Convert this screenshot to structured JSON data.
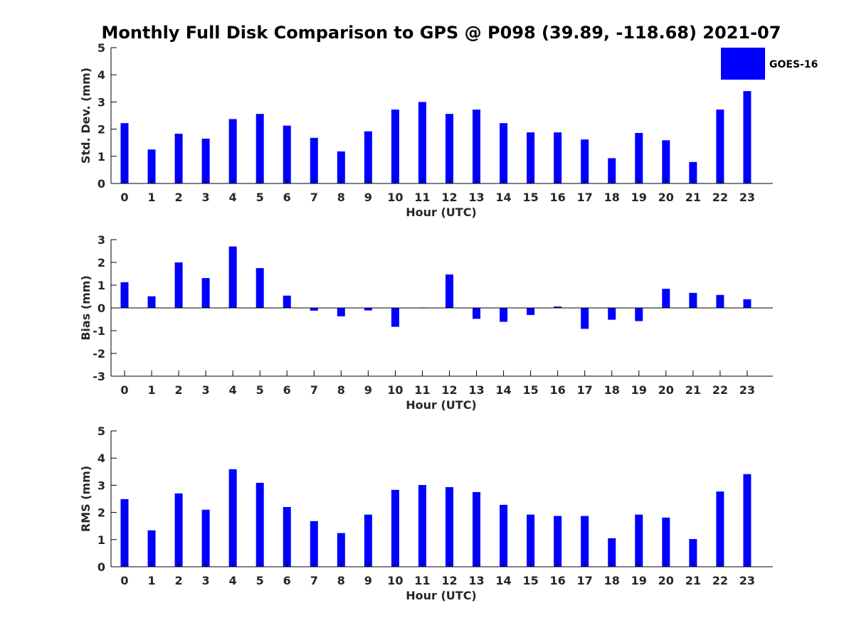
{
  "figure": {
    "title": "Monthly Full Disk Comparison to GPS @ P098 (39.89, -118.68) 2021-07",
    "legend_label": "GOES-16"
  },
  "colors": {
    "bar": "#0000ff",
    "axis": "#000000",
    "tick_text": "#262626"
  },
  "chart_data": [
    {
      "type": "bar",
      "title": "Monthly Full Disk Comparison to GPS @ P098 (39.89, -118.68) 2021-07",
      "xlabel": "Hour (UTC)",
      "ylabel": "Std. Dev. (mm)",
      "ylim": [
        0,
        5
      ],
      "yticks": [
        0,
        1,
        2,
        3,
        4,
        5
      ],
      "categories": [
        "0",
        "1",
        "2",
        "3",
        "4",
        "5",
        "6",
        "7",
        "8",
        "9",
        "10",
        "11",
        "12",
        "13",
        "14",
        "15",
        "16",
        "17",
        "18",
        "19",
        "20",
        "21",
        "22",
        "23"
      ],
      "series": [
        {
          "name": "GOES-16",
          "values": [
            2.22,
            1.25,
            1.83,
            1.65,
            2.37,
            2.56,
            2.13,
            1.68,
            1.18,
            1.92,
            2.72,
            3.0,
            2.56,
            2.72,
            2.22,
            1.88,
            1.88,
            1.62,
            0.93,
            1.86,
            1.59,
            0.79,
            2.72,
            3.4
          ]
        }
      ],
      "legend": "top-right",
      "grid": false
    },
    {
      "type": "bar",
      "xlabel": "Hour (UTC)",
      "ylabel": "Bias (mm)",
      "ylim": [
        -3,
        3
      ],
      "yticks": [
        -3,
        -2,
        -1,
        0,
        1,
        2,
        3
      ],
      "categories": [
        "0",
        "1",
        "2",
        "3",
        "4",
        "5",
        "6",
        "7",
        "8",
        "9",
        "10",
        "11",
        "12",
        "13",
        "14",
        "15",
        "16",
        "17",
        "18",
        "19",
        "20",
        "21",
        "22",
        "23"
      ],
      "series": [
        {
          "values": [
            1.13,
            0.51,
            2.0,
            1.31,
            2.7,
            1.75,
            0.54,
            -0.12,
            -0.37,
            -0.11,
            -0.83,
            0.0,
            1.47,
            -0.48,
            -0.61,
            -0.31,
            0.06,
            -0.92,
            -0.52,
            -0.58,
            0.84,
            0.66,
            0.57,
            0.38
          ]
        }
      ],
      "grid": false
    },
    {
      "type": "bar",
      "xlabel": "Hour (UTC)",
      "ylabel": "RMS (mm)",
      "ylim": [
        0,
        5
      ],
      "yticks": [
        0,
        1,
        2,
        3,
        4,
        5
      ],
      "categories": [
        "0",
        "1",
        "2",
        "3",
        "4",
        "5",
        "6",
        "7",
        "8",
        "9",
        "10",
        "11",
        "12",
        "13",
        "14",
        "15",
        "16",
        "17",
        "18",
        "19",
        "20",
        "21",
        "22",
        "23"
      ],
      "series": [
        {
          "values": [
            2.49,
            1.34,
            2.7,
            2.1,
            3.59,
            3.09,
            2.2,
            1.68,
            1.24,
            1.92,
            2.83,
            3.01,
            2.93,
            2.75,
            2.28,
            1.92,
            1.87,
            1.87,
            1.05,
            1.92,
            1.81,
            1.02,
            2.77,
            3.41
          ]
        }
      ],
      "grid": false
    }
  ]
}
